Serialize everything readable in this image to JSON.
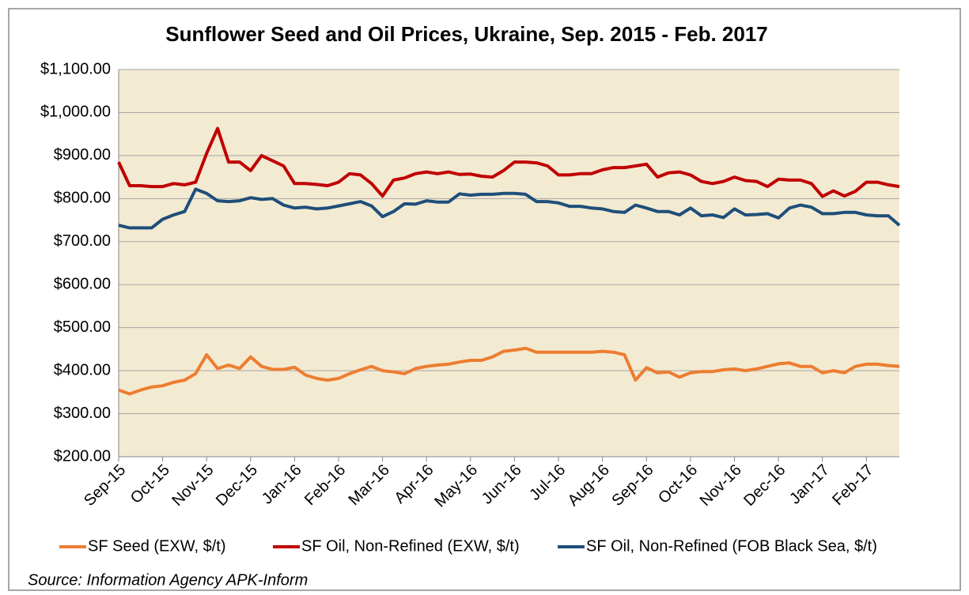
{
  "chart_data": {
    "type": "line",
    "title": "Sunflower Seed and Oil Prices, Ukraine, Sep. 2015 - Feb. 2017",
    "source": "Source:  Information Agency  APK-Inform",
    "categories": [
      "Sep-15",
      null,
      null,
      null,
      "Oct-15",
      null,
      null,
      null,
      "Nov-15",
      null,
      null,
      null,
      "Dec-15",
      null,
      null,
      null,
      "Jan-16",
      null,
      null,
      null,
      "Feb-16",
      null,
      null,
      null,
      "Mar-16",
      null,
      null,
      null,
      "Apr-16",
      null,
      null,
      null,
      "May-16",
      null,
      null,
      null,
      "Jun-16",
      null,
      null,
      null,
      "Jul-16",
      null,
      null,
      null,
      "Aug-16",
      null,
      null,
      null,
      "Sep-16",
      null,
      null,
      null,
      "Oct-16",
      null,
      null,
      null,
      "Nov-16",
      null,
      null,
      null,
      "Dec-16",
      null,
      null,
      null,
      "Jan-17",
      null,
      null,
      null,
      "Feb-17",
      null,
      null,
      null
    ],
    "series": [
      {
        "name": "SF Seed  (EXW, $/t)",
        "color": "#ed7d31",
        "values": [
          355,
          346,
          355,
          362,
          365,
          373,
          378,
          393,
          437,
          405,
          413,
          405,
          432,
          410,
          403,
          403,
          408,
          390,
          382,
          378,
          382,
          393,
          402,
          410,
          400,
          397,
          393,
          405,
          410,
          413,
          415,
          420,
          424,
          424,
          432,
          445,
          448,
          452,
          443,
          443,
          443,
          443,
          443,
          443,
          445,
          443,
          437,
          378,
          407,
          395,
          397,
          385,
          395,
          398,
          398,
          402,
          404,
          400,
          404,
          410,
          416,
          418,
          410,
          410,
          395,
          400,
          395,
          410,
          415,
          415,
          412,
          410
        ]
      },
      {
        "name": "SF Oil, Non-Refined (EXW, $/t)",
        "color": "#c00000",
        "values": [
          885,
          830,
          830,
          828,
          828,
          835,
          832,
          838,
          905,
          963,
          885,
          885,
          865,
          900,
          888,
          876,
          835,
          835,
          833,
          830,
          838,
          858,
          855,
          835,
          806,
          843,
          848,
          858,
          862,
          858,
          862,
          856,
          857,
          852,
          850,
          865,
          885,
          885,
          883,
          876,
          855,
          855,
          858,
          858,
          867,
          872,
          872,
          876,
          880,
          850,
          860,
          862,
          855,
          840,
          835,
          840,
          850,
          842,
          840,
          828,
          845,
          843,
          843,
          835,
          805,
          818,
          806,
          817,
          838,
          838,
          832,
          828
        ]
      },
      {
        "name": "SF Oil, Non-Refined (FOB Black Sea, $/t)",
        "color": "#1f4e79",
        "values": [
          738,
          732,
          732,
          732,
          752,
          762,
          770,
          822,
          812,
          795,
          793,
          795,
          802,
          798,
          800,
          785,
          778,
          780,
          776,
          778,
          783,
          788,
          793,
          783,
          758,
          770,
          788,
          787,
          795,
          792,
          792,
          811,
          808,
          810,
          810,
          812,
          812,
          810,
          793,
          793,
          790,
          782,
          782,
          778,
          776,
          770,
          768,
          785,
          778,
          770,
          770,
          762,
          778,
          760,
          762,
          756,
          776,
          762,
          763,
          765,
          755,
          778,
          785,
          780,
          765,
          765,
          768,
          768,
          762,
          760,
          760,
          738
        ]
      }
    ],
    "ylim": [
      200,
      1100
    ],
    "yticks": [
      {
        "value": 200,
        "label": "$200.00"
      },
      {
        "value": 300,
        "label": "$300.00"
      },
      {
        "value": 400,
        "label": "$400.00"
      },
      {
        "value": 500,
        "label": "$500.00"
      },
      {
        "value": 600,
        "label": "$600.00"
      },
      {
        "value": 700,
        "label": "$700.00"
      },
      {
        "value": 800,
        "label": "$800.00"
      },
      {
        "value": 900,
        "label": "$900.00"
      },
      {
        "value": 1000,
        "label": "$1,000.00"
      },
      {
        "value": 1100,
        "label": "$1,100.00"
      }
    ],
    "grid": true,
    "legend": "bottom"
  }
}
